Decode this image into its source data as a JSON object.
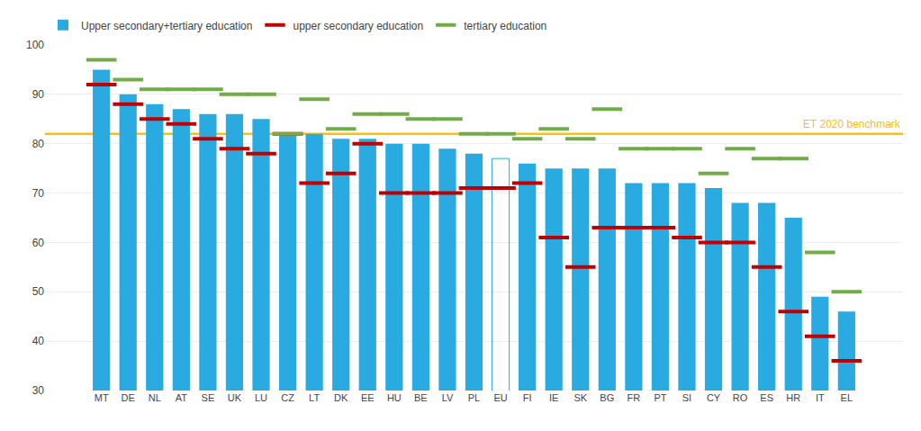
{
  "chart_data": {
    "type": "bar",
    "categories": [
      "MT",
      "DE",
      "NL",
      "AT",
      "SE",
      "UK",
      "LU",
      "CZ",
      "LT",
      "DK",
      "EE",
      "HU",
      "BE",
      "LV",
      "PL",
      "EU",
      "FI",
      "IE",
      "SK",
      "BG",
      "FR",
      "PT",
      "SI",
      "CY",
      "RO",
      "ES",
      "HR",
      "IT",
      "EL"
    ],
    "series": [
      {
        "name": "Upper secondary+tertiary education",
        "type": "bar",
        "color": "#29ABE2",
        "values": [
          95,
          90,
          88,
          87,
          86,
          86,
          85,
          82,
          82,
          81,
          81,
          80,
          80,
          79,
          78,
          77,
          76,
          75,
          75,
          75,
          72,
          72,
          72,
          71,
          68,
          68,
          65,
          49,
          46
        ]
      },
      {
        "name": "upper secondary education",
        "type": "scatter",
        "marker": "dash",
        "color": "#C00000",
        "values": [
          92,
          88,
          85,
          84,
          81,
          79,
          78,
          82,
          72,
          74,
          80,
          70,
          70,
          70,
          71,
          71,
          72,
          61,
          55,
          63,
          63,
          63,
          61,
          60,
          60,
          55,
          46,
          41,
          36
        ]
      },
      {
        "name": "tertiary education",
        "type": "scatter",
        "marker": "dash",
        "color": "#70AD47",
        "values": [
          97,
          93,
          91,
          91,
          91,
          90,
          90,
          82,
          89,
          83,
          86,
          86,
          85,
          85,
          82,
          82,
          81,
          83,
          81,
          87,
          79,
          79,
          79,
          74,
          79,
          77,
          77,
          58,
          50
        ]
      }
    ],
    "hatched": [
      "EU"
    ],
    "benchmark": {
      "value": 82,
      "label": "ET 2020 benchmark",
      "color": "#FFC000"
    },
    "ylim": [
      30,
      100
    ],
    "yticks": [
      30,
      40,
      50,
      60,
      70,
      80,
      90,
      100
    ],
    "grid": true,
    "legend": "top left"
  }
}
